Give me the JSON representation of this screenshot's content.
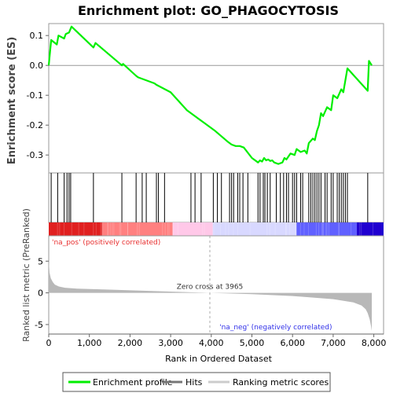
{
  "chart_data": {
    "type": "line",
    "title": "Enrichment plot: GO_PHAGOCYTOSIS",
    "xlabel": "Rank in Ordered Dataset",
    "xlim": [
      0,
      8240
    ],
    "x_ticks": [
      "0",
      "1,000",
      "2,000",
      "3,000",
      "4,000",
      "5,000",
      "6,000",
      "7,000",
      "8,000"
    ],
    "x_tick_values": [
      0,
      1000,
      2000,
      3000,
      4000,
      5000,
      6000,
      7000,
      8000
    ],
    "es_panel": {
      "ylabel": "Enrichment score (ES)",
      "ylim": [
        -0.36,
        0.14
      ],
      "y_ticks": [
        "0.1",
        "0.0",
        "-0.1",
        "-0.2",
        "-0.3"
      ],
      "y_tick_values": [
        0.1,
        0.0,
        -0.1,
        -0.2,
        -0.3
      ],
      "series": [
        {
          "name": "Enrichment profile",
          "color": "#00ee00",
          "x": [
            0,
            60,
            200,
            240,
            380,
            420,
            500,
            530,
            560,
            1100,
            1150,
            1800,
            1830,
            2150,
            2200,
            2600,
            2650,
            3000,
            3400,
            3800,
            4100,
            4400,
            4500,
            4600,
            4700,
            4800,
            5000,
            5150,
            5200,
            5250,
            5300,
            5350,
            5400,
            5450,
            5500,
            5550,
            5650,
            5750,
            5800,
            5850,
            5950,
            6050,
            6100,
            6200,
            6300,
            6350,
            6400,
            6500,
            6550,
            6600,
            6650,
            6700,
            6750,
            6850,
            6950,
            7000,
            7100,
            7200,
            7250,
            7300,
            7350,
            7850,
            7880,
            7950
          ],
          "y": [
            0.0,
            0.085,
            0.07,
            0.1,
            0.09,
            0.105,
            0.11,
            0.12,
            0.13,
            0.06,
            0.075,
            0.0,
            0.005,
            -0.035,
            -0.04,
            -0.06,
            -0.065,
            -0.09,
            -0.15,
            -0.19,
            -0.22,
            -0.255,
            -0.265,
            -0.27,
            -0.27,
            -0.275,
            -0.31,
            -0.325,
            -0.318,
            -0.322,
            -0.31,
            -0.318,
            -0.315,
            -0.32,
            -0.318,
            -0.325,
            -0.33,
            -0.325,
            -0.31,
            -0.315,
            -0.295,
            -0.3,
            -0.28,
            -0.29,
            -0.285,
            -0.295,
            -0.26,
            -0.245,
            -0.25,
            -0.22,
            -0.2,
            -0.16,
            -0.17,
            -0.14,
            -0.15,
            -0.1,
            -0.11,
            -0.08,
            -0.09,
            -0.05,
            -0.01,
            -0.085,
            0.015,
            0.0
          ]
        }
      ]
    },
    "hits_panel": {
      "series_name": "Hits",
      "hit_ranks": [
        60,
        220,
        380,
        450,
        500,
        540,
        1100,
        1800,
        2150,
        2300,
        2400,
        2650,
        2700,
        2850,
        3500,
        3600,
        3750,
        4050,
        4150,
        4250,
        4450,
        4500,
        4550,
        4650,
        4700,
        4780,
        4900,
        5150,
        5200,
        5280,
        5320,
        5380,
        5450,
        5600,
        5700,
        5780,
        5850,
        5900,
        6000,
        6050,
        6100,
        6200,
        6250,
        6400,
        6450,
        6500,
        6550,
        6600,
        6650,
        6700,
        6800,
        6850,
        6950,
        7000,
        7100,
        7150,
        7200,
        7250,
        7300,
        7350,
        7850
      ]
    },
    "metric_panel": {
      "ylabel": "Ranked list metric (PreRanked)",
      "series_name": "Ranking metric scores",
      "ylim": [
        -6.5,
        9
      ],
      "y_ticks": [
        "5",
        "0",
        "-5"
      ],
      "y_tick_values": [
        5,
        0,
        -5
      ],
      "zero_cross": 3965,
      "zero_cross_label": "Zero cross at 3965",
      "pos_label": "'na_pos' (positively correlated)",
      "neg_label": "'na_neg' (negatively correlated)",
      "metric_x": [
        0,
        20,
        50,
        100,
        150,
        250,
        400,
        700,
        1500,
        3000,
        3965,
        5000,
        6000,
        7000,
        7500,
        7700,
        7800,
        7850,
        7900,
        7930,
        7950
      ],
      "metric_y": [
        5.2,
        3.2,
        2.3,
        1.7,
        1.3,
        1.0,
        0.8,
        0.65,
        0.5,
        0.2,
        0.0,
        -0.2,
        -0.5,
        -1.0,
        -1.5,
        -2.0,
        -2.6,
        -3.2,
        -4.2,
        -5.2,
        -6.0
      ]
    },
    "colors": {
      "profile": "#00ee00",
      "pos_label": "#e83030",
      "neg_label": "#3030e8",
      "heat_stops": [
        "#e02020",
        "#ff8080",
        "#ffc8e8",
        "#d8d8ff",
        "#6060ff",
        "#2000d0"
      ]
    },
    "legend": {
      "position": "bottom",
      "items": [
        "Enrichment profile",
        "Hits",
        "Ranking metric scores"
      ]
    },
    "grid": false
  }
}
